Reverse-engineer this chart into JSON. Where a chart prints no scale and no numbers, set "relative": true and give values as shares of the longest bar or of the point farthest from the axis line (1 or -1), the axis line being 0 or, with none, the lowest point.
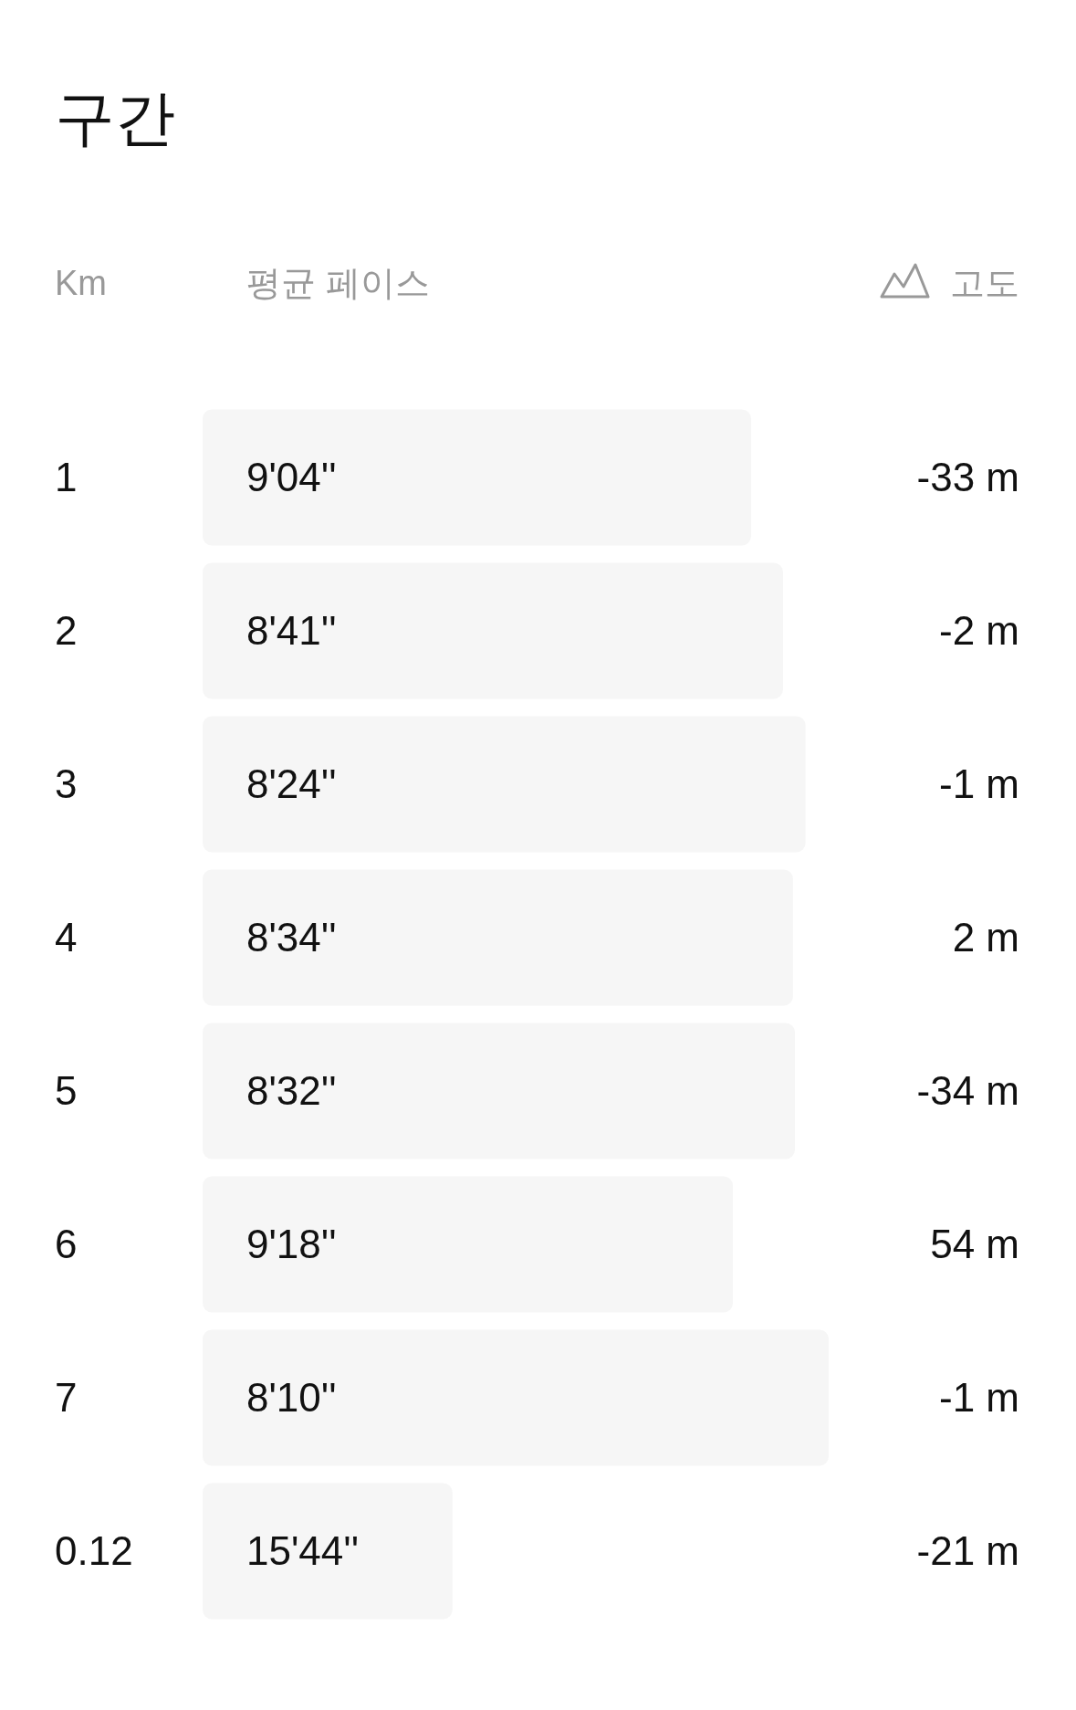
{
  "chart_data": {
    "type": "bar",
    "orientation": "horizontal",
    "relative": true,
    "title": "구간",
    "ylabel": "Km",
    "xlabel": "평균 페이스",
    "y2label": "고도",
    "categories": [
      "1",
      "2",
      "3",
      "4",
      "5",
      "6",
      "7",
      "0.12"
    ],
    "values": [
      0.876,
      0.927,
      0.963,
      0.943,
      0.946,
      0.847,
      1,
      0.399
    ],
    "color": "#f6f6f6",
    "annotations": [
      "9'04''",
      "8'41''",
      "8'24''",
      "8'34''",
      "8'32''",
      "9'18''",
      "8'10''",
      "15'44''",
      "-33 m",
      "-2 m",
      "-1 m",
      "2 m",
      "-34 m",
      "54 m",
      "-1 m",
      "-21 m"
    ]
  }
}
